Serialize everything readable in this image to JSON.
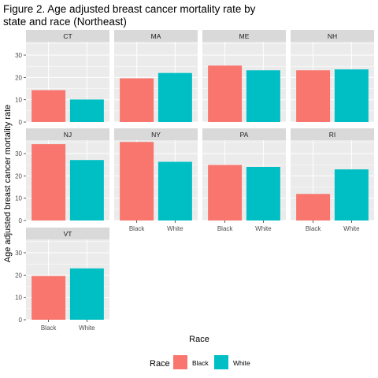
{
  "chart_data": {
    "type": "bar",
    "title_lines": [
      "Figure 2. Age adjusted breast cancer mortality rate by",
      "state and race (Northeast)"
    ],
    "xlabel": "Race",
    "ylabel": "Age adjusted breast cancer mortality rate",
    "categories": [
      "Black",
      "White"
    ],
    "ylim": [
      0,
      36
    ],
    "y_ticks": [
      0,
      10,
      20,
      30
    ],
    "grid": true,
    "facet_columns": 4,
    "legend": {
      "title": "Race",
      "position": "bottom",
      "entries": [
        {
          "label": "Black",
          "color": "#F8766D"
        },
        {
          "label": "White",
          "color": "#00BFC4"
        }
      ]
    },
    "panels": [
      {
        "state": "CT",
        "values": [
          14.3,
          10.1
        ]
      },
      {
        "state": "MA",
        "values": [
          19.6,
          22.0
        ]
      },
      {
        "state": "ME",
        "values": [
          25.3,
          23.2
        ]
      },
      {
        "state": "NH",
        "values": [
          23.2,
          23.6
        ]
      },
      {
        "state": "NJ",
        "values": [
          34.2,
          27.1
        ]
      },
      {
        "state": "NY",
        "values": [
          35.2,
          26.3
        ]
      },
      {
        "state": "PA",
        "values": [
          24.9,
          24.0
        ]
      },
      {
        "state": "RI",
        "values": [
          11.9,
          22.9
        ]
      },
      {
        "state": "VT",
        "values": [
          19.6,
          23.0
        ]
      }
    ]
  },
  "colors": {
    "panel_bg": "#EBEBEB",
    "grid": "#FFFFFF",
    "strip_bg": "#D9D9D9",
    "axis": "#333333"
  }
}
